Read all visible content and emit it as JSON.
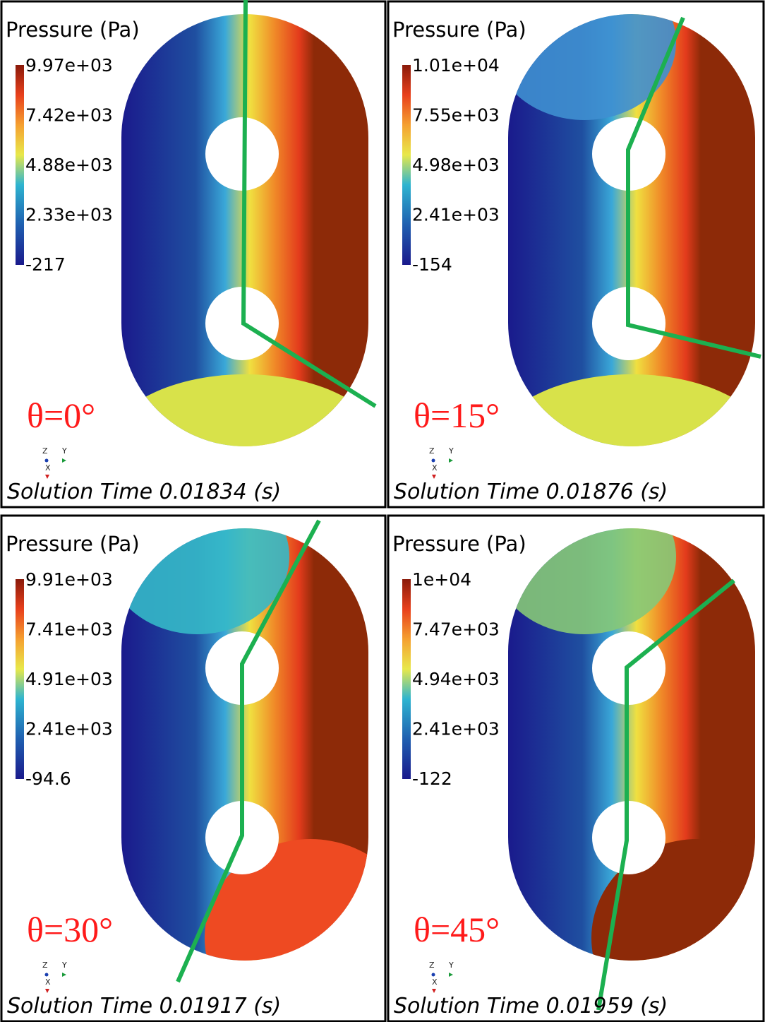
{
  "panels": [
    {
      "title": "Pressure (Pa)",
      "colorbar_labels": [
        "9.97e+03",
        "7.42e+03",
        "4.88e+03",
        "2.33e+03",
        "-217"
      ],
      "angle_label": "θ=0°",
      "axes": [
        "Z",
        "Y",
        "X"
      ],
      "solution_time": "Solution Time 0.01834 (s)"
    },
    {
      "title": "Pressure (Pa)",
      "colorbar_labels": [
        "1.01e+04",
        "7.55e+03",
        "4.98e+03",
        "2.41e+03",
        "-154"
      ],
      "angle_label": "θ=15°",
      "axes": [
        "Z",
        "Y",
        "X"
      ],
      "solution_time": "Solution Time 0.01876 (s)"
    },
    {
      "title": "Pressure (Pa)",
      "colorbar_labels": [
        "9.91e+03",
        "7.41e+03",
        "4.91e+03",
        "2.41e+03",
        "-94.6"
      ],
      "angle_label": "θ=30°",
      "axes": [
        "Z",
        "Y",
        "X"
      ],
      "solution_time": "Solution Time 0.01917 (s)"
    },
    {
      "title": "Pressure (Pa)",
      "colorbar_labels": [
        "1e+04",
        "7.47e+03",
        "4.94e+03",
        "2.41e+03",
        "-122"
      ],
      "angle_label": "θ=45°",
      "axes": [
        "Z",
        "Y",
        "X"
      ],
      "solution_time": "Solution Time 0.01959 (s)"
    }
  ]
}
